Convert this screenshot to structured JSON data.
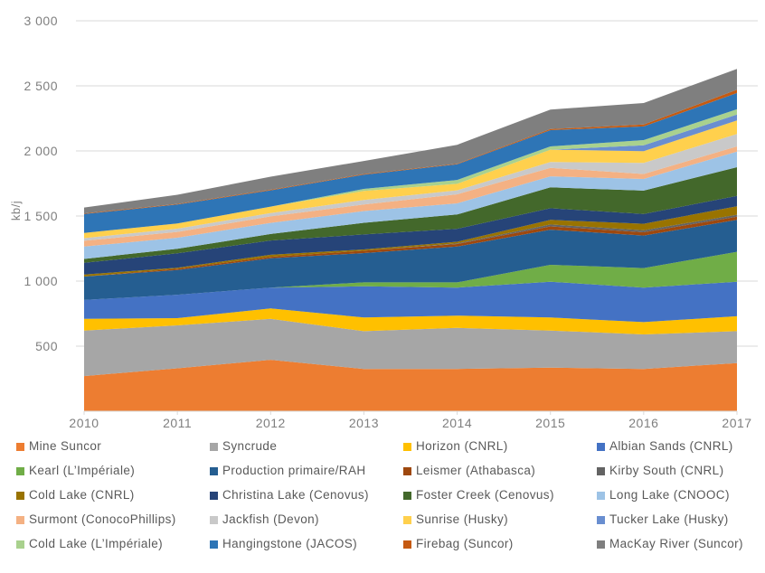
{
  "chart_data": {
    "type": "area",
    "stacked": true,
    "title": "",
    "ylabel": "kb/j",
    "x": [
      "2010",
      "2011",
      "2012",
      "2013",
      "2014",
      "2015",
      "2016",
      "2017"
    ],
    "ylim": [
      0,
      3000
    ],
    "ytick_step": 500,
    "y_tick_labels": [
      "500",
      "1 000",
      "1 500",
      "2 000",
      "2 500",
      "3 000"
    ],
    "grid": true,
    "legend_position": "bottom",
    "series": [
      {
        "name": "Mine Suncor",
        "color": "#ED7D31",
        "values": [
          270,
          330,
          395,
          325,
          325,
          335,
          325,
          370
        ]
      },
      {
        "name": "Syncrude",
        "color": "#A6A6A6",
        "values": [
          350,
          330,
          315,
          290,
          315,
          285,
          265,
          245
        ]
      },
      {
        "name": "Horizon (CNRL)",
        "color": "#FFC000",
        "values": [
          90,
          55,
          80,
          105,
          95,
          100,
          95,
          115
        ]
      },
      {
        "name": "Albian Sands (CNRL)",
        "color": "#4472C4",
        "values": [
          145,
          180,
          160,
          240,
          215,
          275,
          265,
          265
        ]
      },
      {
        "name": "Kearl (L’Impériale)",
        "color": "#70AD47",
        "values": [
          0,
          0,
          0,
          30,
          40,
          130,
          150,
          230
        ]
      },
      {
        "name": "Production primaire/RAH",
        "color": "#255E91",
        "values": [
          180,
          190,
          225,
          225,
          275,
          270,
          250,
          245
        ]
      },
      {
        "name": "Leismer (Athabasca)",
        "color": "#9E480E",
        "values": [
          0,
          10,
          12,
          18,
          20,
          25,
          25,
          25
        ]
      },
      {
        "name": "Kirby South (CNRL)",
        "color": "#636363",
        "values": [
          0,
          0,
          0,
          0,
          5,
          15,
          15,
          15
        ]
      },
      {
        "name": "Cold Lake (CNRL)",
        "color": "#997300",
        "values": [
          15,
          8,
          15,
          10,
          12,
          35,
          50,
          65
        ]
      },
      {
        "name": "Christina Lake (Cenovus)",
        "color": "#264478",
        "values": [
          90,
          110,
          110,
          115,
          100,
          90,
          75,
          80
        ]
      },
      {
        "name": "Foster Creek (Cenovus)",
        "color": "#43682B",
        "values": [
          30,
          35,
          50,
          90,
          110,
          160,
          180,
          220
        ]
      },
      {
        "name": "Long Lake (CNOOC)",
        "color": "#9DC3E6",
        "values": [
          95,
          85,
          85,
          90,
          85,
          85,
          90,
          120
        ]
      },
      {
        "name": "Surmont (ConocoPhillips)",
        "color": "#F4B183",
        "values": [
          45,
          45,
          50,
          50,
          70,
          65,
          38,
          40
        ]
      },
      {
        "name": "Jackfish (Devon)",
        "color": "#C9C9C9",
        "values": [
          20,
          25,
          25,
          35,
          30,
          45,
          85,
          95
        ]
      },
      {
        "name": "Sunrise (Husky)",
        "color": "#FFD04D",
        "values": [
          40,
          40,
          50,
          70,
          50,
          95,
          90,
          105
        ]
      },
      {
        "name": "Tucker Lake (Husky)",
        "color": "#698ED0",
        "values": [
          0,
          0,
          0,
          0,
          0,
          0,
          45,
          45
        ]
      },
      {
        "name": "Cold Lake (L’Impériale)",
        "color": "#A9D18E",
        "values": [
          0,
          0,
          0,
          15,
          30,
          25,
          40,
          40
        ]
      },
      {
        "name": "Hangingstone (JACOS)",
        "color": "#2E75B6",
        "values": [
          145,
          145,
          125,
          110,
          120,
          125,
          105,
          125
        ]
      },
      {
        "name": "Firebag (Suncor)",
        "color": "#C55A11",
        "values": [
          5,
          5,
          5,
          5,
          5,
          8,
          15,
          25
        ]
      },
      {
        "name": "MacKay River (Suncor)",
        "color": "#7F7F7F",
        "values": [
          45,
          70,
          100,
          100,
          145,
          150,
          165,
          160
        ]
      }
    ]
  },
  "style": {
    "background": "#FFFFFF",
    "grid_color": "#D9D9D9",
    "axis_text_color": "#7F7F7F",
    "legend_text_color": "#595959"
  }
}
